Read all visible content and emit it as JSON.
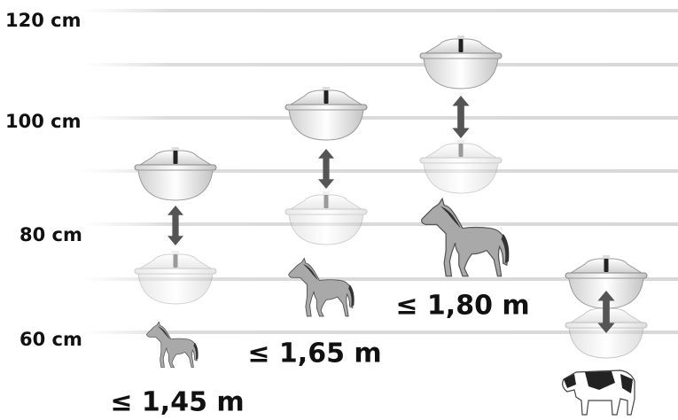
{
  "axis_labels": [
    "120 cm",
    "100 cm",
    "80 cm",
    "60 cm"
  ],
  "groups": [
    {
      "label": "≤ 1,45 m"
    },
    {
      "label": "≤ 1,65 m"
    },
    {
      "label": "≤ 1,80 m"
    }
  ]
}
